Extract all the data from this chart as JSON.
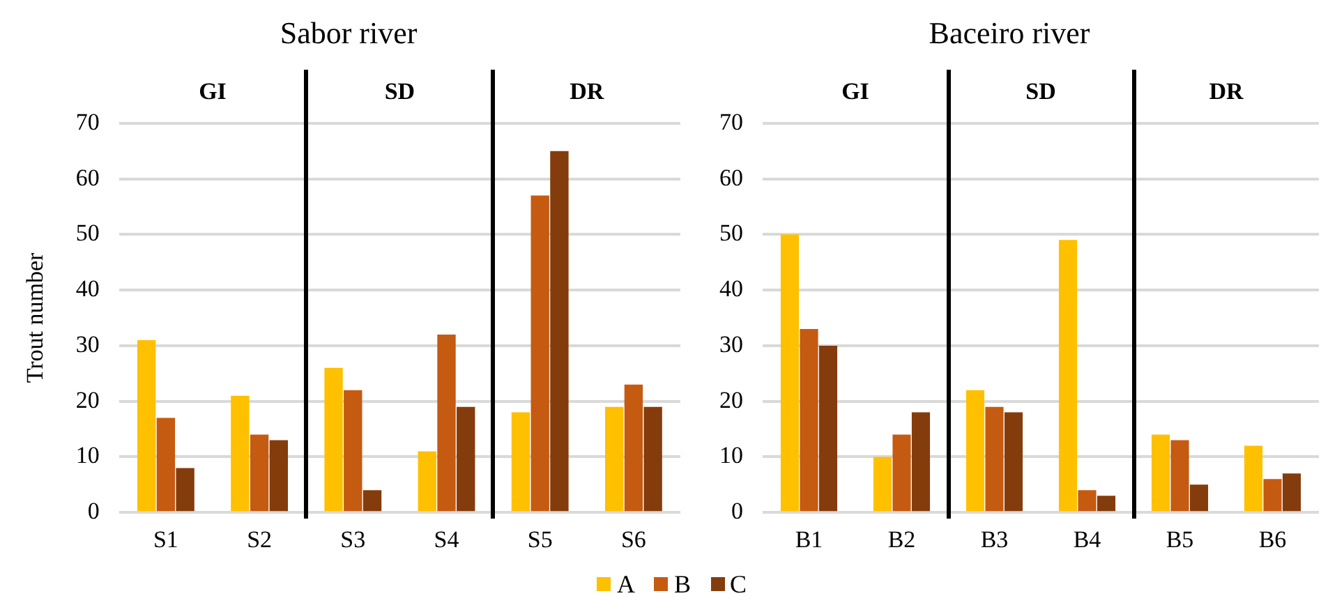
{
  "chart_data": [
    {
      "type": "bar",
      "title": "Sabor river",
      "ylabel": "Trout number",
      "categories": [
        "S1",
        "S2",
        "S3",
        "S4",
        "S5",
        "S6"
      ],
      "series": [
        {
          "name": "A",
          "color": "#ffc000",
          "values": [
            31,
            21,
            26,
            11,
            18,
            19
          ]
        },
        {
          "name": "B",
          "color": "#c55a11",
          "values": [
            17,
            14,
            22,
            32,
            57,
            23
          ]
        },
        {
          "name": "C",
          "color": "#843c0c",
          "values": [
            8,
            13,
            4,
            19,
            65,
            19
          ]
        }
      ],
      "ylim": [
        0,
        70
      ],
      "yticks": [
        0,
        10,
        20,
        30,
        40,
        50,
        60,
        70
      ],
      "grid": "y",
      "legend": "bottom",
      "annotations": [
        "GI",
        "SD",
        "DR"
      ]
    },
    {
      "type": "bar",
      "title": "Baceiro river",
      "categories": [
        "B1",
        "B2",
        "B3",
        "B4",
        "B5",
        "B6"
      ],
      "series": [
        {
          "color": "#ffc000",
          "values": [
            50,
            10,
            22,
            49,
            14,
            12
          ]
        },
        {
          "color": "#c55a11",
          "values": [
            33,
            14,
            19,
            4,
            13,
            6
          ]
        },
        {
          "color": "#843c0c",
          "values": [
            30,
            18,
            18,
            3,
            5,
            7
          ]
        }
      ],
      "ylim": [
        0,
        70
      ],
      "yticks": [
        0,
        10,
        20,
        30,
        40,
        50,
        60,
        70
      ],
      "grid": "y",
      "annotations": [
        "GI",
        "SD",
        "DR"
      ]
    }
  ]
}
